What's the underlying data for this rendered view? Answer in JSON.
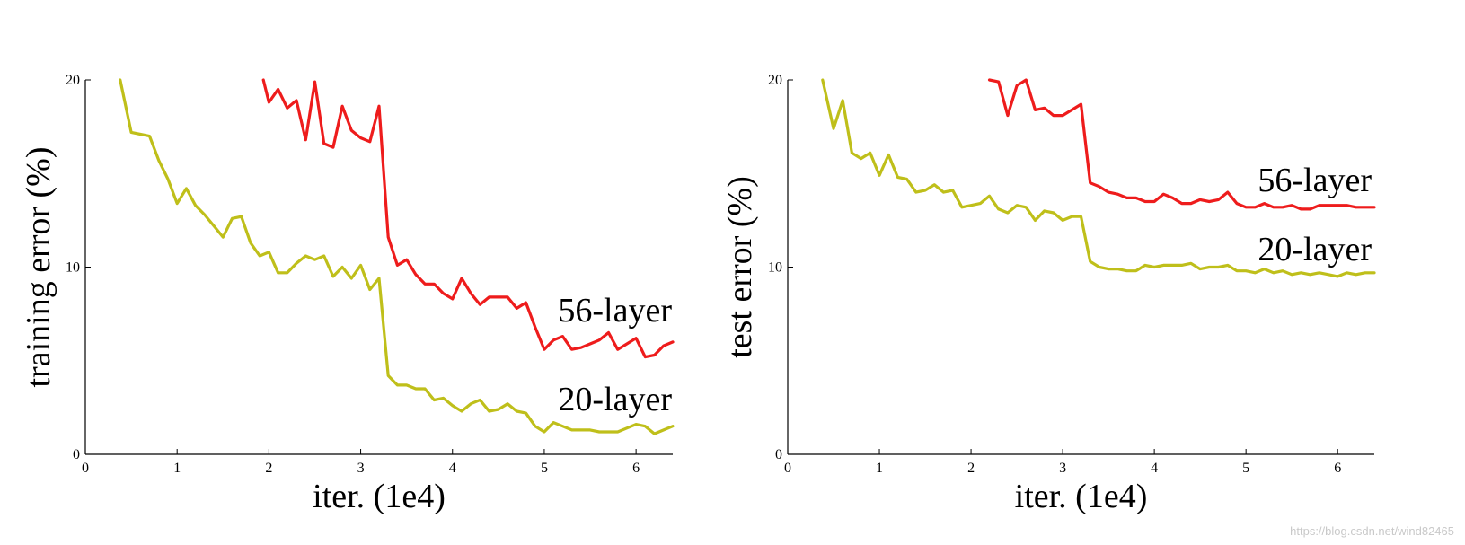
{
  "watermark": "https://blog.csdn.net/wind82465",
  "colors": {
    "56-layer": "#ee1c1c",
    "20-layer": "#bfbf1a"
  },
  "chart_data": [
    {
      "type": "line",
      "xlabel": "iter. (1e4)",
      "ylabel": "training error (%)",
      "xlim": [
        0,
        6.4
      ],
      "ylim": [
        0,
        20
      ],
      "xticks": [
        0,
        1,
        2,
        3,
        4,
        5,
        6
      ],
      "yticks": [
        0,
        10,
        20
      ],
      "series": [
        {
          "name": "56-layer",
          "color": "#ee1c1c",
          "x": [
            1.94,
            2.0,
            2.1,
            2.2,
            2.3,
            2.4,
            2.5,
            2.6,
            2.7,
            2.8,
            2.9,
            3.0,
            3.1,
            3.2,
            3.3,
            3.4,
            3.5,
            3.6,
            3.7,
            3.8,
            3.9,
            4.0,
            4.1,
            4.2,
            4.3,
            4.4,
            4.5,
            4.6,
            4.7,
            4.8,
            4.9,
            5.0,
            5.1,
            5.2,
            5.3,
            5.4,
            5.5,
            5.6,
            5.7,
            5.8,
            5.9,
            6.0,
            6.1,
            6.2,
            6.3,
            6.4
          ],
          "y": [
            20.0,
            18.8,
            19.5,
            18.5,
            18.9,
            16.8,
            19.9,
            16.6,
            16.4,
            18.6,
            17.3,
            16.9,
            16.7,
            18.6,
            11.6,
            10.1,
            10.4,
            9.6,
            9.1,
            9.1,
            8.6,
            8.3,
            9.4,
            8.6,
            8.0,
            8.4,
            8.4,
            8.4,
            7.8,
            8.1,
            6.8,
            5.6,
            6.1,
            6.3,
            5.6,
            5.7,
            5.9,
            6.1,
            6.5,
            5.6,
            5.9,
            6.2,
            5.2,
            5.3,
            5.8,
            6.0
          ],
          "label": "56-layer"
        },
        {
          "name": "20-layer",
          "color": "#bfbf1a",
          "x": [
            0.38,
            0.5,
            0.6,
            0.7,
            0.8,
            0.9,
            1.0,
            1.1,
            1.2,
            1.3,
            1.4,
            1.5,
            1.6,
            1.7,
            1.8,
            1.9,
            2.0,
            2.1,
            2.2,
            2.3,
            2.4,
            2.5,
            2.6,
            2.7,
            2.8,
            2.9,
            3.0,
            3.1,
            3.2,
            3.3,
            3.4,
            3.5,
            3.6,
            3.7,
            3.8,
            3.9,
            4.0,
            4.1,
            4.2,
            4.3,
            4.4,
            4.5,
            4.6,
            4.7,
            4.8,
            4.9,
            5.0,
            5.1,
            5.2,
            5.3,
            5.4,
            5.5,
            5.6,
            5.7,
            5.8,
            5.9,
            6.0,
            6.1,
            6.2,
            6.3,
            6.4
          ],
          "y": [
            20.0,
            17.2,
            17.1,
            17.0,
            15.7,
            14.7,
            13.4,
            14.2,
            13.3,
            12.8,
            12.2,
            11.6,
            12.6,
            12.7,
            11.3,
            10.6,
            10.8,
            9.7,
            9.7,
            10.2,
            10.6,
            10.4,
            10.6,
            9.5,
            10.0,
            9.4,
            10.1,
            8.8,
            9.4,
            4.2,
            3.7,
            3.7,
            3.5,
            3.5,
            2.9,
            3.0,
            2.6,
            2.3,
            2.7,
            2.9,
            2.3,
            2.4,
            2.7,
            2.3,
            2.2,
            1.5,
            1.2,
            1.7,
            1.5,
            1.3,
            1.3,
            1.3,
            1.2,
            1.2,
            1.2,
            1.4,
            1.6,
            1.5,
            1.1,
            1.3,
            1.5
          ],
          "label": "20-layer"
        }
      ]
    },
    {
      "type": "line",
      "xlabel": "iter. (1e4)",
      "ylabel": "test error (%)",
      "xlim": [
        0,
        6.4
      ],
      "ylim": [
        0,
        20
      ],
      "xticks": [
        0,
        1,
        2,
        3,
        4,
        5,
        6
      ],
      "yticks": [
        0,
        10,
        20
      ],
      "series": [
        {
          "name": "56-layer",
          "color": "#ee1c1c",
          "x": [
            2.2,
            2.3,
            2.4,
            2.5,
            2.6,
            2.7,
            2.8,
            2.9,
            3.0,
            3.1,
            3.2,
            3.3,
            3.4,
            3.5,
            3.6,
            3.7,
            3.8,
            3.9,
            4.0,
            4.1,
            4.2,
            4.3,
            4.4,
            4.5,
            4.6,
            4.7,
            4.8,
            4.9,
            5.0,
            5.1,
            5.2,
            5.3,
            5.4,
            5.5,
            5.6,
            5.7,
            5.8,
            5.9,
            6.0,
            6.1,
            6.2,
            6.3,
            6.4
          ],
          "y": [
            20.0,
            19.9,
            18.1,
            19.7,
            20.0,
            18.4,
            18.5,
            18.1,
            18.1,
            18.4,
            18.7,
            14.5,
            14.3,
            14.0,
            13.9,
            13.7,
            13.7,
            13.5,
            13.5,
            13.9,
            13.7,
            13.4,
            13.4,
            13.6,
            13.5,
            13.6,
            14.0,
            13.4,
            13.2,
            13.2,
            13.4,
            13.2,
            13.2,
            13.3,
            13.1,
            13.1,
            13.3,
            13.3,
            13.3,
            13.3,
            13.2,
            13.2,
            13.2
          ],
          "label": "56-layer"
        },
        {
          "name": "20-layer",
          "color": "#bfbf1a",
          "x": [
            0.38,
            0.5,
            0.6,
            0.7,
            0.8,
            0.9,
            1.0,
            1.1,
            1.2,
            1.3,
            1.4,
            1.5,
            1.6,
            1.7,
            1.8,
            1.9,
            2.0,
            2.1,
            2.2,
            2.3,
            2.4,
            2.5,
            2.6,
            2.7,
            2.8,
            2.9,
            3.0,
            3.1,
            3.2,
            3.3,
            3.4,
            3.5,
            3.6,
            3.7,
            3.8,
            3.9,
            4.0,
            4.1,
            4.2,
            4.3,
            4.4,
            4.5,
            4.6,
            4.7,
            4.8,
            4.9,
            5.0,
            5.1,
            5.2,
            5.3,
            5.4,
            5.5,
            5.6,
            5.7,
            5.8,
            5.9,
            6.0,
            6.1,
            6.2,
            6.3,
            6.4
          ],
          "y": [
            20.0,
            17.4,
            18.9,
            16.1,
            15.8,
            16.1,
            14.9,
            16.0,
            14.8,
            14.7,
            14.0,
            14.1,
            14.4,
            14.0,
            14.1,
            13.2,
            13.3,
            13.4,
            13.8,
            13.1,
            12.9,
            13.3,
            13.2,
            12.5,
            13.0,
            12.9,
            12.5,
            12.7,
            12.7,
            10.3,
            10.0,
            9.9,
            9.9,
            9.8,
            9.8,
            10.1,
            10.0,
            10.1,
            10.1,
            10.1,
            10.2,
            9.9,
            10.0,
            10.0,
            10.1,
            9.8,
            9.8,
            9.7,
            9.9,
            9.7,
            9.8,
            9.6,
            9.7,
            9.6,
            9.7,
            9.6,
            9.5,
            9.7,
            9.6,
            9.7,
            9.7
          ],
          "label": "20-layer"
        }
      ]
    }
  ]
}
